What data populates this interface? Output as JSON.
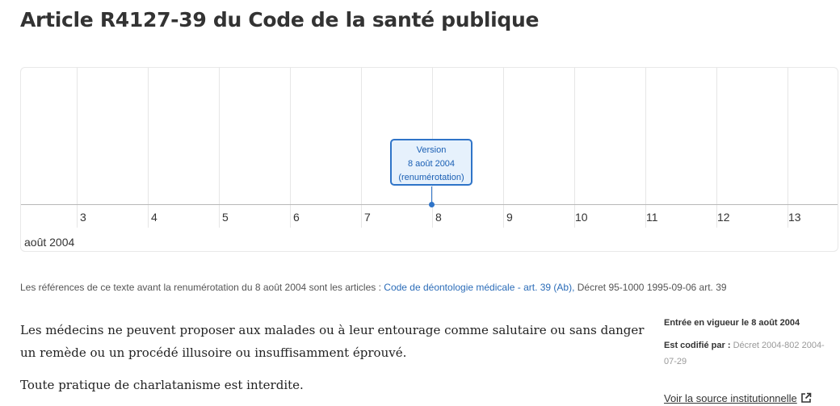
{
  "page_title": "Article R4127-39 du Code de la santé publique",
  "timeline": {
    "ticks": [
      "3",
      "4",
      "5",
      "6",
      "7",
      "8",
      "9",
      "10",
      "11",
      "12",
      "13"
    ],
    "month": "août 2004",
    "version": {
      "line1": "Version",
      "line2": "8 août 2004",
      "line3": "(renumérotation)"
    },
    "accent_color": "#2f74c8"
  },
  "references": {
    "prefix": "Les références de ce texte avant la renumérotation du 8 août 2004 sont les articles :",
    "link": "Code de déontologie médicale - art. 39 (Ab),",
    "rest": "Décret 95-1000 1995-09-06 art. 39"
  },
  "body": {
    "paragraph1": "Les médecins ne peuvent proposer aux malades ou à leur entourage comme salutaire ou sans danger un remède ou un procédé illusoire ou insuffisamment éprouvé.",
    "paragraph2": "Toute pratique de charlatanisme est interdite."
  },
  "sidebar": {
    "entry": "Entrée en vigueur le 8 août 2004",
    "codified_label": "Est codifié par :",
    "codified_value": "Décret 2004-802 2004-07-29",
    "source_link": "Voir la source institutionnelle",
    "source_icon": "external-link-icon"
  }
}
